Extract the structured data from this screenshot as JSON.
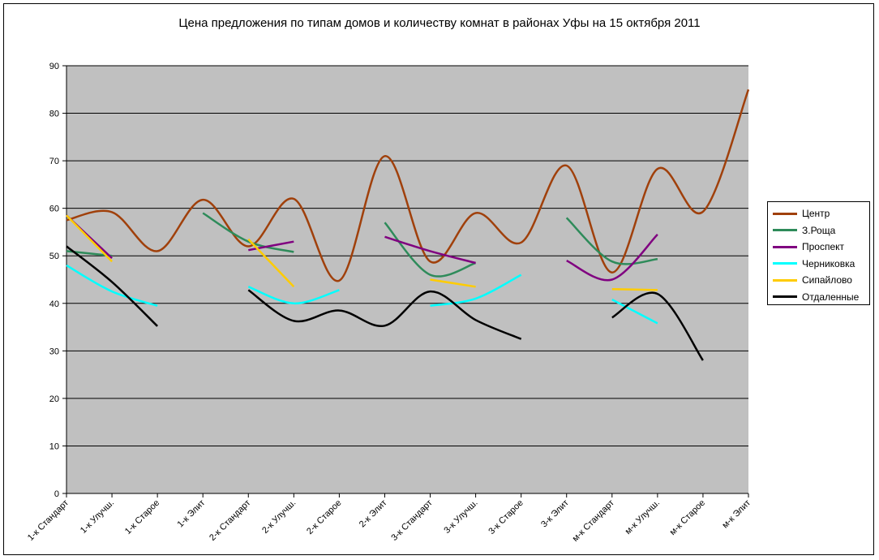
{
  "chart_data": {
    "type": "line",
    "title": "Цена предложения по типам домов и количеству комнат в районах Уфы на 15 октября 2011",
    "xlabel": "",
    "ylabel": "",
    "ylim": [
      0,
      90
    ],
    "yticks": [
      0,
      10,
      20,
      30,
      40,
      50,
      60,
      70,
      80,
      90
    ],
    "grid": true,
    "legend_position": "right",
    "categories": [
      "1-к Стандарт",
      "1-к Улучш.",
      "1-к Старое",
      "1-к Элит",
      "2-к Стандарт",
      "2-к Улучш.",
      "2-к Старое",
      "2-к Элит",
      "3-к Стандарт",
      "3-к Улучш.",
      "3-к Старое",
      "3-к Элит",
      "м-к Стандарт",
      "м-к Улучш.",
      "м-к Старое",
      "м-к Элит"
    ],
    "series": [
      {
        "name": "Центр",
        "color": "#a0400b",
        "values": [
          57.5,
          59.2,
          51,
          61.8,
          52,
          62,
          44.8,
          71,
          48.8,
          59,
          52.8,
          69,
          46.5,
          68.3,
          59.3,
          85
        ]
      },
      {
        "name": "З.Роща",
        "color": "#2e8b5a",
        "values": [
          51,
          50,
          null,
          59,
          53,
          50.8,
          null,
          57,
          46,
          48.5,
          null,
          58,
          48.8,
          49.3,
          null,
          null
        ]
      },
      {
        "name": "Проспект",
        "color": "#800080",
        "values": [
          58.5,
          49.5,
          null,
          null,
          51.2,
          53,
          null,
          54,
          51,
          48.5,
          null,
          49,
          45,
          54.5,
          null,
          null
        ]
      },
      {
        "name": "Черниковка",
        "color": "#00ffff",
        "values": [
          48,
          42.5,
          39.5,
          null,
          43.5,
          40,
          42.8,
          null,
          39.5,
          41,
          46,
          null,
          40.8,
          35.8,
          null,
          null
        ]
      },
      {
        "name": "Сипайлово",
        "color": "#ffcc00",
        "values": [
          58.5,
          48.8,
          null,
          null,
          53.5,
          43.5,
          null,
          null,
          45,
          43.5,
          null,
          null,
          43,
          42.8,
          null,
          null
        ]
      },
      {
        "name": "Отдаленные",
        "color": "#000000",
        "values": [
          52,
          44.5,
          35.2,
          null,
          42.8,
          36.3,
          38.5,
          35.3,
          42.5,
          36.5,
          32.5,
          null,
          37,
          42,
          28,
          null
        ]
      }
    ],
    "plot_background": "#c0c0c0"
  }
}
